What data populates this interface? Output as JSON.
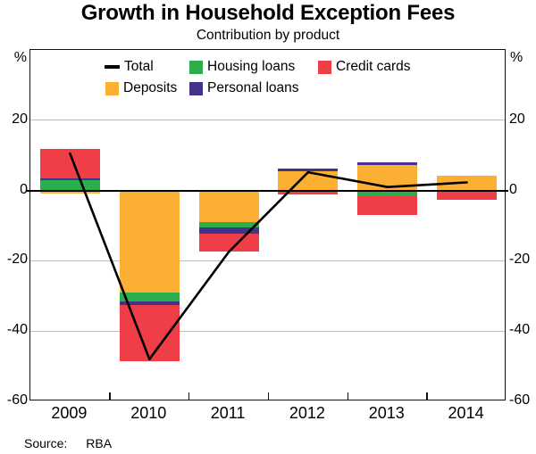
{
  "header": {
    "title": "Growth in Household Exception Fees",
    "subtitle": "Contribution by product"
  },
  "source": {
    "label": "Source:",
    "value": "RBA"
  },
  "chart_data": {
    "type": "bar",
    "subtype": "stacked-bar-with-line",
    "title": "Growth in Household Exception Fees",
    "subtitle": "Contribution by product",
    "categories": [
      "2009",
      "2010",
      "2011",
      "2012",
      "2013",
      "2014"
    ],
    "unit_left": "%",
    "unit_right": "%",
    "ylim": [
      -60,
      40
    ],
    "yticks": [
      20,
      0,
      -20,
      -40,
      -60
    ],
    "gridlines": [
      20,
      -20,
      -40
    ],
    "grid": true,
    "legend_position": "top-inside",
    "series": [
      {
        "name": "Deposits",
        "type": "bar",
        "color": "#FBB034",
        "values": [
          -0.8,
          -29.1,
          -9.1,
          5.5,
          7.2,
          4.2
        ]
      },
      {
        "name": "Housing loans",
        "type": "bar",
        "color": "#2BAE4D",
        "values": [
          3.0,
          -2.4,
          -1.4,
          0.0,
          -1.5,
          -0.4
        ]
      },
      {
        "name": "Personal loans",
        "type": "bar",
        "color": "#45328B",
        "values": [
          0.5,
          -1.1,
          -1.7,
          0.7,
          0.7,
          0.0
        ]
      },
      {
        "name": "Credit cards",
        "type": "bar",
        "color": "#EF3E48",
        "values": [
          8.4,
          -15.9,
          -5.2,
          -1.0,
          -5.5,
          -2.3
        ]
      },
      {
        "name": "Total",
        "type": "line",
        "color": "#000000",
        "values": [
          10.5,
          -48.0,
          -17.5,
          5.2,
          1.0,
          2.3
        ]
      }
    ],
    "legend_rows": [
      [
        {
          "series": "Total",
          "marker": "line"
        },
        {
          "series": "Housing loans",
          "marker": "square"
        },
        {
          "series": "Credit cards",
          "marker": "square"
        }
      ],
      [
        {
          "series": "Deposits",
          "marker": "square"
        },
        {
          "series": "Personal loans",
          "marker": "square"
        }
      ]
    ]
  }
}
